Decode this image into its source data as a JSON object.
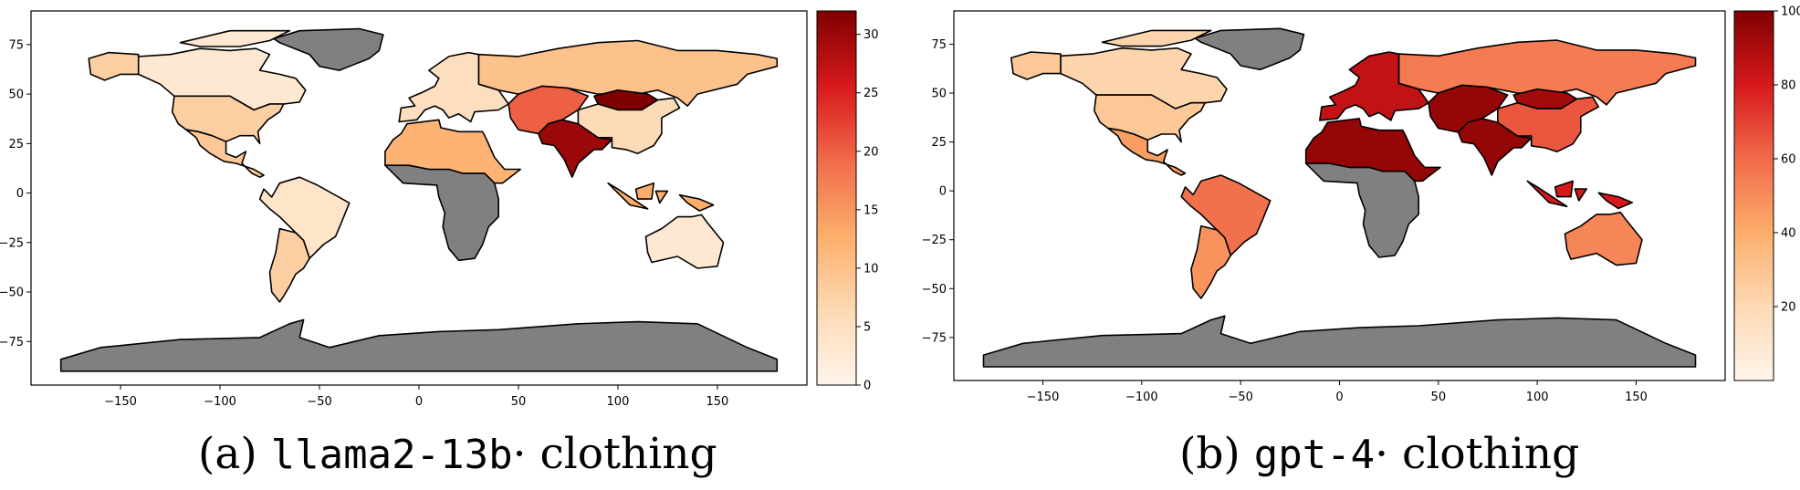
{
  "colors": {
    "no_data": "#808080",
    "ramp": [
      "#fff5eb",
      "#fdd9b4",
      "#fdae6b",
      "#f16a4a",
      "#d7191c",
      "#7f0000"
    ]
  },
  "chart_data": [
    {
      "type": "choropleth",
      "panel": "a",
      "caption": {
        "prefix": "(a)",
        "model": "llama2-13b",
        "suffix": "· clothing"
      },
      "xlim": [
        -195,
        195
      ],
      "ylim": [
        -97,
        92
      ],
      "xticks": [
        -150,
        -100,
        -50,
        0,
        50,
        100,
        150
      ],
      "yticks": [
        75,
        50,
        25,
        0,
        -25,
        -50,
        -75
      ],
      "colorbar": {
        "min": 0,
        "max": 32,
        "ticks": [
          0,
          5,
          10,
          15,
          20,
          25,
          30
        ]
      },
      "regions": [
        {
          "name": "Greenland",
          "value": null
        },
        {
          "name": "Antarctica",
          "value": null
        },
        {
          "name": "Canada",
          "value": 3
        },
        {
          "name": "United States",
          "value": 8
        },
        {
          "name": "Mexico",
          "value": 9
        },
        {
          "name": "Brazil",
          "value": 4
        },
        {
          "name": "Argentina",
          "value": 8
        },
        {
          "name": "Russia",
          "value": 10
        },
        {
          "name": "Central Asia",
          "value": 20
        },
        {
          "name": "Mongolia",
          "value": 32
        },
        {
          "name": "India",
          "value": 30
        },
        {
          "name": "China",
          "value": 6
        },
        {
          "name": "Australia",
          "value": 3
        },
        {
          "name": "Europe",
          "value": 5
        },
        {
          "name": "Central Africa",
          "value": null
        },
        {
          "name": "North Africa",
          "value": 12
        },
        {
          "name": "Indonesia",
          "value": 13
        }
      ]
    },
    {
      "type": "choropleth",
      "panel": "b",
      "caption": {
        "prefix": "(b)",
        "model": "gpt-4",
        "suffix": "· clothing"
      },
      "xlim": [
        -195,
        195
      ],
      "ylim": [
        -97,
        92
      ],
      "xticks": [
        -150,
        -100,
        -50,
        0,
        50,
        100,
        150
      ],
      "yticks": [
        75,
        50,
        25,
        0,
        -25,
        -50,
        -75
      ],
      "colorbar": {
        "min": 0,
        "max": 100,
        "ticks": [
          20,
          40,
          60,
          80,
          100
        ]
      },
      "regions": [
        {
          "name": "Greenland",
          "value": null
        },
        {
          "name": "Antarctica",
          "value": null
        },
        {
          "name": "Canada",
          "value": 22
        },
        {
          "name": "United States",
          "value": 28
        },
        {
          "name": "Mexico",
          "value": 45
        },
        {
          "name": "Brazil",
          "value": 58
        },
        {
          "name": "Argentina",
          "value": 48
        },
        {
          "name": "Russia",
          "value": 55
        },
        {
          "name": "Central Asia",
          "value": 95
        },
        {
          "name": "Mongolia",
          "value": 92
        },
        {
          "name": "India",
          "value": 95
        },
        {
          "name": "China",
          "value": 65
        },
        {
          "name": "Australia",
          "value": 52
        },
        {
          "name": "Europe",
          "value": 85
        },
        {
          "name": "Central Africa",
          "value": null
        },
        {
          "name": "North Africa",
          "value": 95
        },
        {
          "name": "Indonesia",
          "value": 80
        }
      ]
    }
  ]
}
